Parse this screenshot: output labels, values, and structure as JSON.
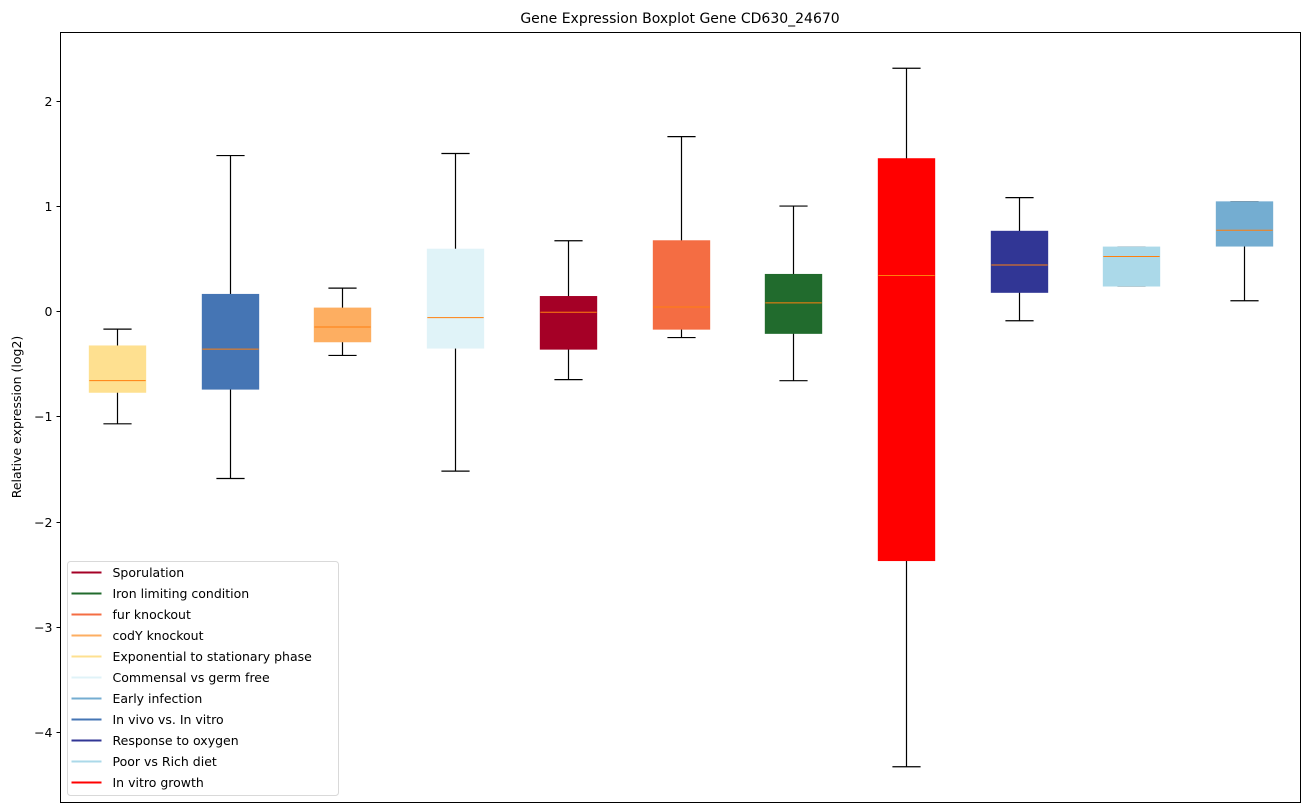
{
  "chart_data": {
    "type": "boxplot",
    "title": "Gene Expression Boxplot Gene CD630_24670",
    "xlabel": "",
    "ylabel": "Relative expression (log2)",
    "ylim": [
      -4.67,
      2.65
    ],
    "xlim": [
      0.5,
      11.5
    ],
    "yticks": [
      -4,
      -3,
      -2,
      -1,
      0,
      1,
      2
    ],
    "ytick_labels": [
      "−4",
      "−3",
      "−2",
      "−1",
      "0",
      "1",
      "2"
    ],
    "grid": false,
    "legend_position": "lower-left",
    "median_color": "#ff7f0e",
    "boxes": [
      {
        "name": "Exponential to stationary phase",
        "color": "#fee090",
        "whisker_low": -1.07,
        "q1": -0.77,
        "median": -0.66,
        "q3": -0.33,
        "whisker_high": -0.17
      },
      {
        "name": "In vivo vs. In vitro",
        "color": "#4575b4",
        "whisker_low": -1.59,
        "q1": -0.74,
        "median": -0.36,
        "q3": 0.16,
        "whisker_high": 1.48
      },
      {
        "name": "codY knockout",
        "color": "#fdae61",
        "whisker_low": -0.42,
        "q1": -0.29,
        "median": -0.15,
        "q3": 0.03,
        "whisker_high": 0.22
      },
      {
        "name": "Commensal vs germ free",
        "color": "#e0f3f8",
        "whisker_low": -1.52,
        "q1": -0.35,
        "median": -0.06,
        "q3": 0.59,
        "whisker_high": 1.5
      },
      {
        "name": "Sporulation",
        "color": "#a50026",
        "whisker_low": -0.65,
        "q1": -0.36,
        "median": -0.01,
        "q3": 0.14,
        "whisker_high": 0.67
      },
      {
        "name": "fur knockout",
        "color": "#f46d43",
        "whisker_low": -0.25,
        "q1": -0.17,
        "median": 0.04,
        "q3": 0.67,
        "whisker_high": 1.66
      },
      {
        "name": "Iron limiting condition",
        "color": "#216b2d",
        "whisker_low": -0.66,
        "q1": -0.21,
        "median": 0.08,
        "q3": 0.35,
        "whisker_high": 1.0
      },
      {
        "name": "In vitro growth",
        "color": "#ff0000",
        "whisker_low": -4.33,
        "q1": -2.37,
        "median": 0.34,
        "q3": 1.45,
        "whisker_high": 2.31
      },
      {
        "name": "Response to oxygen",
        "color": "#313695",
        "whisker_low": -0.09,
        "q1": 0.18,
        "median": 0.44,
        "q3": 0.76,
        "whisker_high": 1.08
      },
      {
        "name": "Poor vs Rich diet",
        "color": "#abd9e9",
        "whisker_low": 0.24,
        "q1": 0.24,
        "median": 0.52,
        "q3": 0.61,
        "whisker_high": 0.61
      },
      {
        "name": "Early infection",
        "color": "#74add1",
        "whisker_low": 0.1,
        "q1": 0.62,
        "median": 0.77,
        "q3": 1.04,
        "whisker_high": 1.04
      }
    ],
    "legend": [
      {
        "label": "Sporulation",
        "color": "#a50026"
      },
      {
        "label": "Iron limiting condition",
        "color": "#216b2d"
      },
      {
        "label": "fur knockout",
        "color": "#f46d43"
      },
      {
        "label": "codY knockout",
        "color": "#fdae61"
      },
      {
        "label": "Exponential to stationary phase",
        "color": "#fee090"
      },
      {
        "label": "Commensal vs germ free",
        "color": "#e0f3f8"
      },
      {
        "label": "Early infection",
        "color": "#74add1"
      },
      {
        "label": "In vivo vs. In vitro",
        "color": "#4575b4"
      },
      {
        "label": "Response to oxygen",
        "color": "#313695"
      },
      {
        "label": "Poor vs Rich diet",
        "color": "#abd9e9"
      },
      {
        "label": "In vitro growth",
        "color": "#ff0000"
      }
    ]
  }
}
